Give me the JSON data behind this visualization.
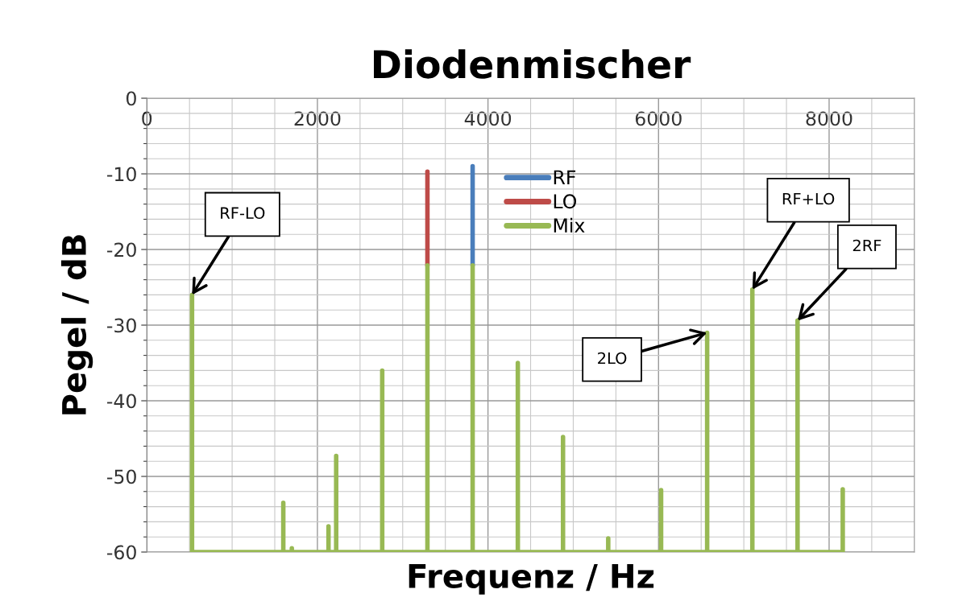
{
  "chart_data": {
    "type": "line",
    "title": "Diodenmischer",
    "xlabel": "Frequenz / Hz",
    "ylabel": "Pegel / dB",
    "xlim": [
      0,
      9000
    ],
    "xticks": [
      0,
      2000,
      4000,
      6000,
      8000
    ],
    "ylim": [
      -60,
      0
    ],
    "yticks": [
      0,
      -10,
      -20,
      -30,
      -40,
      -50,
      -60
    ],
    "grid": true,
    "legend": "top",
    "marker": "none",
    "line_style": "solid",
    "series": [
      {
        "name": "RF",
        "color": "#4a7ebb",
        "x": [
          3820,
          3820
        ],
        "values": [
          -22.1,
          -9.0
        ]
      },
      {
        "name": "LO",
        "color": "#be4b48",
        "x": [
          3290,
          3290
        ],
        "values": [
          -22.1,
          -9.7
        ]
      },
      {
        "name": "Mix",
        "color": "#98b954",
        "x": [
          530,
          530,
          530,
          1600,
          1600,
          1600,
          1700,
          1700,
          1700,
          2130,
          2130,
          2130,
          2220,
          2220,
          2220,
          2760,
          2760,
          2760,
          3290,
          3290,
          3290,
          3820,
          3820,
          3820,
          4350,
          4350,
          4350,
          4880,
          4880,
          4880,
          5410,
          5410,
          5410,
          6030,
          6030,
          6030,
          6570,
          6570,
          6570,
          7100,
          7100,
          7100,
          7630,
          7630,
          7630,
          8160,
          8160,
          8160
        ],
        "values": [
          -60,
          -26.0,
          -60,
          -60,
          -53.5,
          -60,
          -60,
          -59.5,
          -60,
          -60,
          -56.6,
          -60,
          -60,
          -47.3,
          -60,
          -60,
          -36.0,
          -60,
          -60,
          -22.1,
          -60,
          -60,
          -22.1,
          -60,
          -60,
          -35.0,
          -60,
          -60,
          -44.8,
          -60,
          -60,
          -58.2,
          -60,
          -60,
          -51.8,
          -60,
          -60,
          -31.0,
          -60,
          -60,
          -25.3,
          -60,
          -60,
          -29.4,
          -60,
          -60,
          -51.7,
          -60
        ]
      }
    ],
    "annotations": [
      {
        "text": "RF-LO",
        "x": 530,
        "y": -26.0
      },
      {
        "text": "2LO",
        "x": 6570,
        "y": -31.0
      },
      {
        "text": "RF+LO",
        "x": 7100,
        "y": -25.3
      },
      {
        "text": "2RF",
        "x": 7630,
        "y": -29.4
      }
    ]
  }
}
